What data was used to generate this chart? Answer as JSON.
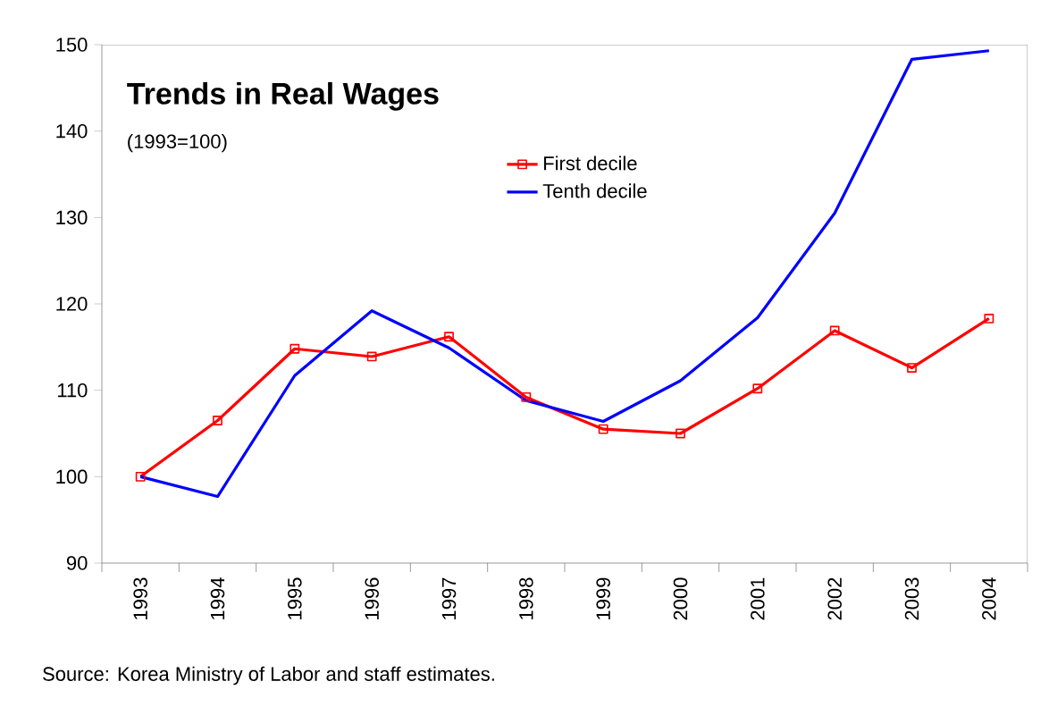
{
  "chart_data": {
    "type": "line",
    "title": "Trends in Real Wages",
    "subtitle": "(1993=100)",
    "categories": [
      "1993",
      "1994",
      "1995",
      "1996",
      "1997",
      "1998",
      "1999",
      "2000",
      "2001",
      "2002",
      "2003",
      "2004"
    ],
    "series": [
      {
        "name": "First decile",
        "color": "#ff0000",
        "marker": "square",
        "values": [
          100,
          106.5,
          114.8,
          113.9,
          116.2,
          109.2,
          105.5,
          105.0,
          110.2,
          116.9,
          112.6,
          118.3
        ]
      },
      {
        "name": "Tenth decile",
        "color": "#0000ff",
        "marker": "none",
        "values": [
          100,
          97.7,
          111.7,
          119.2,
          114.9,
          108.8,
          106.4,
          111.1,
          118.4,
          130.5,
          148.3,
          149.3
        ]
      }
    ],
    "ylim": [
      90,
      150
    ],
    "yticks": [
      90,
      100,
      110,
      120,
      130,
      140,
      150
    ],
    "grid": false,
    "legend": "top",
    "annotations": [
      "Source: Korea Ministry of Labor and staff estimates."
    ]
  }
}
